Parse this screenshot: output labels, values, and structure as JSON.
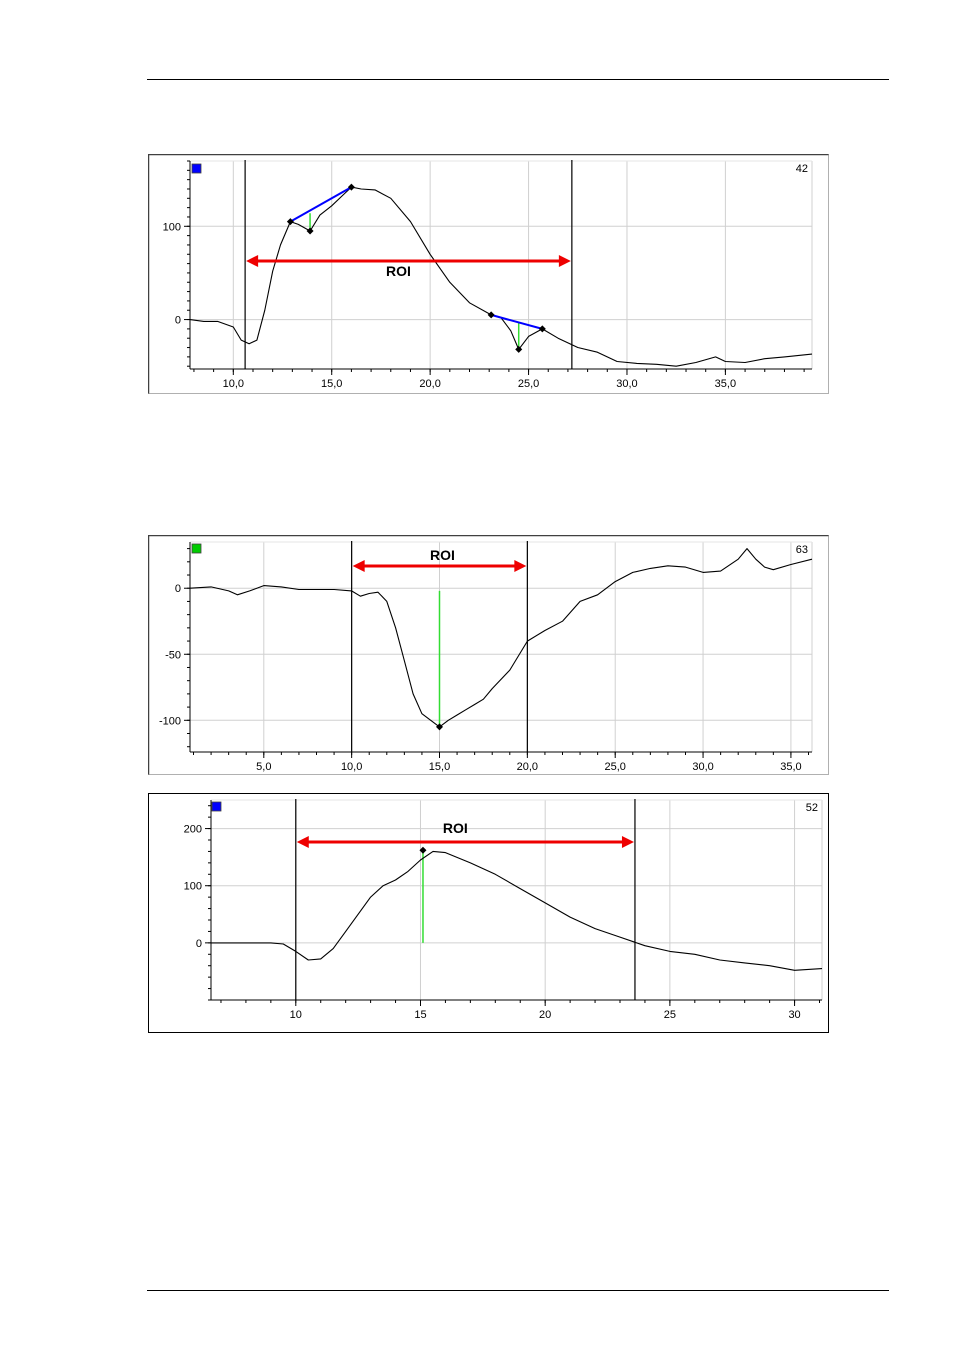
{
  "charts": [
    {
      "id": "c1",
      "badge_color": "#0000ff",
      "number": "42",
      "roi_label": "ROI",
      "xlim": [
        7.8,
        39.4
      ],
      "ylim": [
        -53,
        170
      ],
      "xticks": [
        {
          "v": 10,
          "label": "10,0"
        },
        {
          "v": 15,
          "label": "15,0"
        },
        {
          "v": 20,
          "label": "20,0"
        },
        {
          "v": 25,
          "label": "25,0"
        },
        {
          "v": 30,
          "label": "30,0"
        },
        {
          "v": 35,
          "label": "35,0"
        }
      ],
      "yticks": [
        {
          "v": 0,
          "label": "0"
        },
        {
          "v": 100,
          "label": "100"
        }
      ],
      "minor_x_step": 1,
      "minor_y_step": 10,
      "roi_bounds": [
        10.6,
        27.2
      ],
      "series": [
        [
          7.8,
          0
        ],
        [
          8.5,
          -2
        ],
        [
          9.2,
          -2
        ],
        [
          10,
          -8
        ],
        [
          10.4,
          -22
        ],
        [
          10.8,
          -26
        ],
        [
          11.2,
          -22
        ],
        [
          11.6,
          10
        ],
        [
          12,
          52
        ],
        [
          12.4,
          80
        ],
        [
          12.9,
          105
        ],
        [
          13.3,
          102
        ],
        [
          13.9,
          95
        ],
        [
          14.4,
          112
        ],
        [
          15,
          122
        ],
        [
          15.5,
          132
        ],
        [
          16,
          142
        ],
        [
          16.5,
          140
        ],
        [
          17.2,
          139
        ],
        [
          18,
          130
        ],
        [
          19,
          105
        ],
        [
          20,
          70
        ],
        [
          21,
          40
        ],
        [
          22,
          18
        ],
        [
          23.1,
          5
        ],
        [
          23.6,
          2
        ],
        [
          24.1,
          -12
        ],
        [
          24.5,
          -32
        ],
        [
          25,
          -18
        ],
        [
          25.7,
          -10
        ],
        [
          26.5,
          -20
        ],
        [
          27.5,
          -30
        ],
        [
          28.5,
          -35
        ],
        [
          29.5,
          -45
        ],
        [
          30.5,
          -47
        ],
        [
          31.5,
          -48
        ],
        [
          32.5,
          -50
        ],
        [
          33.5,
          -46
        ],
        [
          34.5,
          -40
        ],
        [
          35,
          -45
        ],
        [
          36,
          -46
        ],
        [
          37,
          -42
        ],
        [
          38,
          -40
        ],
        [
          39.4,
          -37
        ]
      ],
      "markers": [
        [
          12.9,
          105
        ],
        [
          13.9,
          95
        ],
        [
          16,
          142
        ],
        [
          23.1,
          5
        ],
        [
          24.5,
          -32
        ],
        [
          25.7,
          -10
        ]
      ],
      "blue_lines": [
        [
          [
            12.9,
            105
          ],
          [
            16,
            142
          ]
        ],
        [
          [
            23.1,
            5
          ],
          [
            25.7,
            -10
          ]
        ]
      ],
      "green_lines": [
        [
          [
            13.9,
            95
          ],
          [
            13.9,
            114
          ]
        ],
        [
          [
            24.5,
            -32
          ],
          [
            24.5,
            -3
          ]
        ]
      ]
    },
    {
      "id": "c2",
      "badge_color": "#00cc00",
      "number": "63",
      "roi_label": "ROI",
      "xlim": [
        0.8,
        36.2
      ],
      "ylim": [
        -124,
        35
      ],
      "xticks": [
        {
          "v": 5,
          "label": "5,0"
        },
        {
          "v": 10,
          "label": "10,0"
        },
        {
          "v": 15,
          "label": "15,0"
        },
        {
          "v": 20,
          "label": "20,0"
        },
        {
          "v": 25,
          "label": "25,0"
        },
        {
          "v": 30,
          "label": "30,0"
        },
        {
          "v": 35,
          "label": "35,0"
        }
      ],
      "yticks": [
        {
          "v": -100,
          "label": "-100"
        },
        {
          "v": -50,
          "label": "-50"
        },
        {
          "v": 0,
          "label": "0"
        }
      ],
      "minor_x_step": 1,
      "minor_y_step": 10,
      "roi_bounds": [
        10,
        20
      ],
      "series": [
        [
          0.8,
          0
        ],
        [
          2,
          1
        ],
        [
          3,
          -2
        ],
        [
          3.5,
          -5
        ],
        [
          4.2,
          -2
        ],
        [
          5,
          2
        ],
        [
          6,
          1
        ],
        [
          7,
          -1
        ],
        [
          8,
          -1
        ],
        [
          9,
          -1
        ],
        [
          10,
          -2
        ],
        [
          10.5,
          -6
        ],
        [
          11,
          -4
        ],
        [
          11.5,
          -3
        ],
        [
          12,
          -10
        ],
        [
          12.5,
          -30
        ],
        [
          13,
          -55
        ],
        [
          13.5,
          -80
        ],
        [
          14,
          -95
        ],
        [
          14.5,
          -100
        ],
        [
          15,
          -105
        ],
        [
          15.5,
          -100
        ],
        [
          16,
          -96
        ],
        [
          16.5,
          -92
        ],
        [
          17,
          -88
        ],
        [
          17.5,
          -84
        ],
        [
          18,
          -76
        ],
        [
          19,
          -62
        ],
        [
          20,
          -40
        ],
        [
          21,
          -32
        ],
        [
          22,
          -25
        ],
        [
          23,
          -10
        ],
        [
          24,
          -5
        ],
        [
          25,
          5
        ],
        [
          26,
          12
        ],
        [
          27,
          15
        ],
        [
          28,
          17
        ],
        [
          29,
          16
        ],
        [
          30,
          12
        ],
        [
          31,
          13
        ],
        [
          32,
          22
        ],
        [
          32.5,
          30
        ],
        [
          33,
          22
        ],
        [
          33.5,
          16
        ],
        [
          34,
          14
        ],
        [
          35,
          18
        ],
        [
          36.2,
          22
        ]
      ],
      "markers": [
        [
          15,
          -105
        ]
      ],
      "blue_lines": [],
      "green_lines": [
        [
          [
            15,
            -105
          ],
          [
            15,
            -2
          ]
        ]
      ]
    },
    {
      "id": "c3",
      "badge_color": "#0000ff",
      "number": "52",
      "roi_label": "ROI",
      "xlim": [
        6.6,
        31.1
      ],
      "ylim": [
        -100,
        250
      ],
      "xticks": [
        {
          "v": 10,
          "label": "10"
        },
        {
          "v": 15,
          "label": "15"
        },
        {
          "v": 20,
          "label": "20"
        },
        {
          "v": 25,
          "label": "25"
        },
        {
          "v": 30,
          "label": "30"
        }
      ],
      "yticks": [
        {
          "v": 0,
          "label": "0"
        },
        {
          "v": 100,
          "label": "100"
        },
        {
          "v": 200,
          "label": "200"
        }
      ],
      "minor_x_step": 1,
      "minor_y_step": 20,
      "roi_bounds": [
        10,
        23.6
      ],
      "series": [
        [
          6.6,
          0
        ],
        [
          8,
          0
        ],
        [
          9,
          0
        ],
        [
          9.5,
          -2
        ],
        [
          10,
          -15
        ],
        [
          10.5,
          -30
        ],
        [
          11,
          -28
        ],
        [
          11.5,
          -10
        ],
        [
          12,
          20
        ],
        [
          12.5,
          50
        ],
        [
          13,
          80
        ],
        [
          13.5,
          100
        ],
        [
          14,
          110
        ],
        [
          14.5,
          125
        ],
        [
          15,
          145
        ],
        [
          15.5,
          160
        ],
        [
          16,
          158
        ],
        [
          17,
          140
        ],
        [
          18,
          120
        ],
        [
          19,
          95
        ],
        [
          20,
          70
        ],
        [
          21,
          45
        ],
        [
          22,
          25
        ],
        [
          23,
          10
        ],
        [
          24,
          -5
        ],
        [
          25,
          -15
        ],
        [
          26,
          -20
        ],
        [
          27,
          -30
        ],
        [
          28,
          -35
        ],
        [
          29,
          -40
        ],
        [
          30,
          -48
        ],
        [
          31.1,
          -45
        ]
      ],
      "markers": [
        [
          15.1,
          162
        ]
      ],
      "blue_lines": [],
      "green_lines": [
        [
          [
            15.1,
            162
          ],
          [
            15.1,
            0
          ]
        ]
      ]
    }
  ]
}
